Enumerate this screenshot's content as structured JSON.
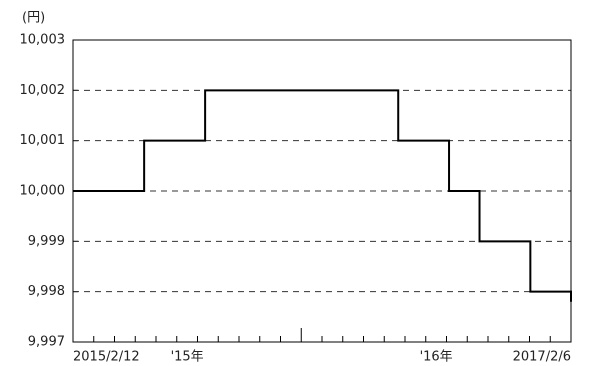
{
  "chart_data": {
    "type": "line",
    "y_label": "(円)",
    "categories": [
      "2015/2/12",
      null,
      null,
      null,
      null,
      null,
      null,
      null,
      null,
      null,
      null,
      null,
      null,
      null,
      null,
      null,
      null,
      null,
      null,
      null,
      null,
      null,
      null,
      null,
      null,
      null,
      null,
      null,
      null,
      null,
      null,
      null,
      null,
      null,
      null,
      null,
      null,
      null,
      null,
      null,
      null,
      null,
      null,
      null,
      null,
      null,
      null,
      null,
      null,
      "2017/2/6"
    ],
    "values": [
      10000,
      10000,
      10000,
      10000,
      10000,
      10000,
      10000,
      10001,
      10001,
      10001,
      10001,
      10001,
      10001,
      10002,
      10002,
      10002,
      10002,
      10002,
      10002,
      10002,
      10002,
      10002,
      10002,
      10002,
      10002,
      10002,
      10002,
      10002,
      10002,
      10002,
      10002,
      10002,
      10001,
      10001,
      10001,
      10001,
      10001,
      10000,
      10000,
      10000,
      9999,
      9999,
      9999,
      9999,
      9999,
      9998,
      9998,
      9998,
      9998,
      9997.8
    ],
    "color": "#000000",
    "x_annotations": [
      "'15年",
      "'16年"
    ],
    "ylim": [
      9997,
      10003
    ],
    "yticks": [
      {
        "value": 9997,
        "label": "9,997"
      },
      {
        "value": 9998,
        "label": "9,998"
      },
      {
        "value": 9999,
        "label": "9,999"
      },
      {
        "value": 10000,
        "label": "10,000"
      },
      {
        "value": 10001,
        "label": "10,001"
      },
      {
        "value": 10002,
        "label": "10,002"
      },
      {
        "value": 10003,
        "label": "10,003"
      }
    ],
    "grid": true
  }
}
